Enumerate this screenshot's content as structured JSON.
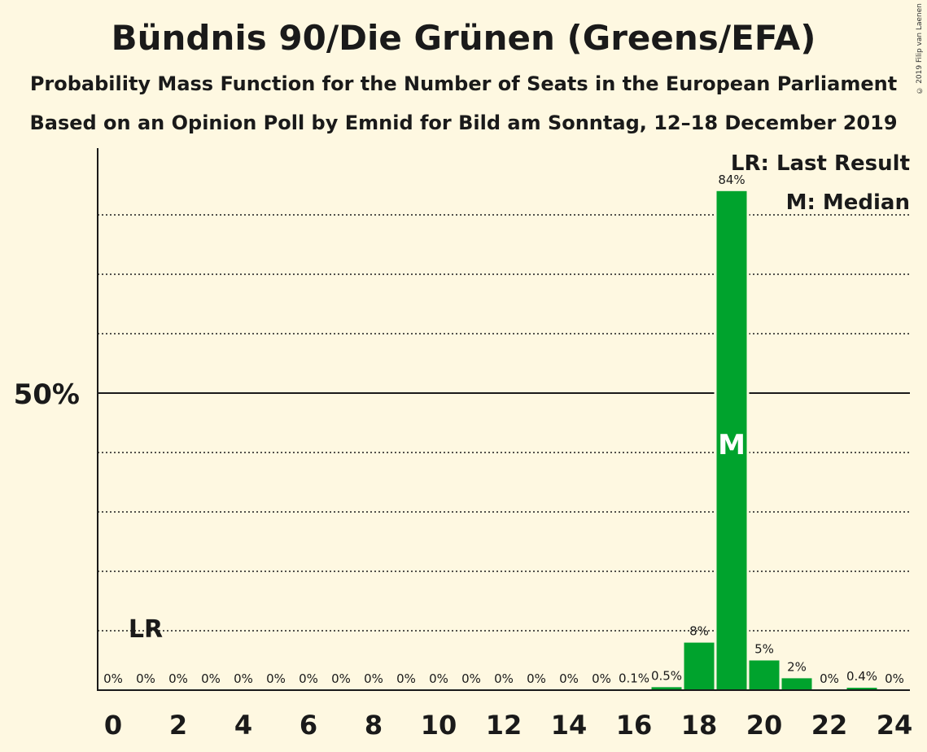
{
  "title": "Bündnis 90/Die Grünen (Greens/EFA)",
  "subtitle": "Probability Mass Function for the Number of Seats in the European Parliament",
  "subtitle2": "Based on an Opinion Poll by Emnid for Bild am Sonntag, 12–18 December 2019",
  "copyright": "© 2019 Filip van Laenen",
  "legend": {
    "last_result": "LR: Last Result",
    "median": "M: Median"
  },
  "colors": {
    "bar": "#00a32d",
    "background": "#fef8e1",
    "text": "#1a1a1a"
  },
  "chart_data": {
    "type": "bar",
    "x": [
      0,
      1,
      2,
      3,
      4,
      5,
      6,
      7,
      8,
      9,
      10,
      11,
      12,
      13,
      14,
      15,
      16,
      17,
      18,
      19,
      20,
      21,
      22,
      23,
      24
    ],
    "values": [
      0,
      0,
      0,
      0,
      0,
      0,
      0,
      0,
      0,
      0,
      0,
      0,
      0,
      0,
      0,
      0,
      0.1,
      0.5,
      8,
      84,
      5,
      2,
      0,
      0.4,
      0
    ],
    "labels": [
      "0%",
      "0%",
      "0%",
      "0%",
      "0%",
      "0%",
      "0%",
      "0%",
      "0%",
      "0%",
      "0%",
      "0%",
      "0%",
      "0%",
      "0%",
      "0%",
      "0.1%",
      "0.5%",
      "8%",
      "84%",
      "5%",
      "2%",
      "0%",
      "0.4%",
      "0%"
    ],
    "x_tick_labels": [
      "0",
      "2",
      "4",
      "6",
      "8",
      "10",
      "12",
      "14",
      "16",
      "18",
      "20",
      "22",
      "24"
    ],
    "y_tick_label": "50%",
    "ylim": [
      0,
      100
    ],
    "gridlines": [
      10,
      20,
      30,
      40,
      60,
      70,
      80
    ],
    "major_gridline": 50,
    "last_result_seat": 1,
    "last_result_label": "LR",
    "median_seat": 19,
    "median_label": "M"
  }
}
